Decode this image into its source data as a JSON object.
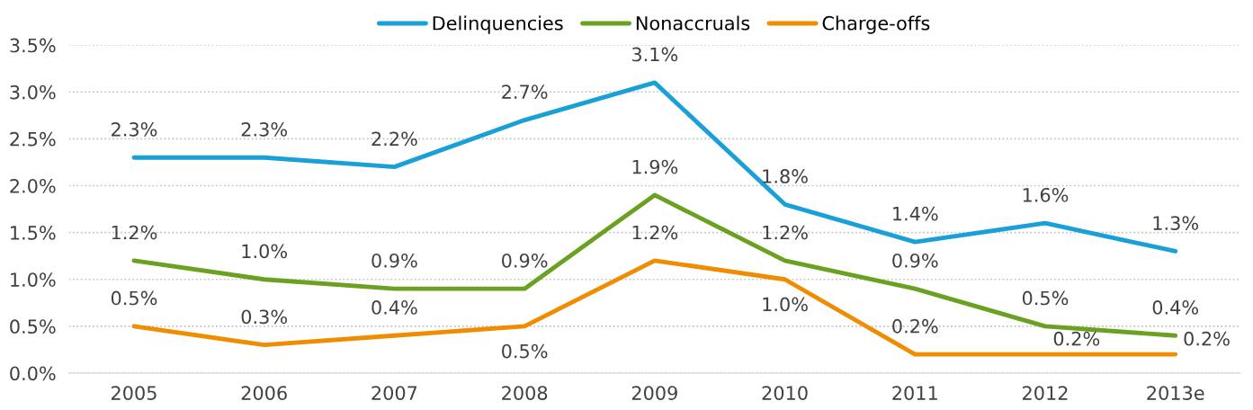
{
  "chart_data": {
    "type": "line",
    "categories": [
      "2005",
      "2006",
      "2007",
      "2008",
      "2009",
      "2010",
      "2011",
      "2012",
      "2013e"
    ],
    "series": [
      {
        "name": "Delinquencies",
        "color": "#1aa0d8",
        "values": [
          2.3,
          2.3,
          2.2,
          2.7,
          3.1,
          1.8,
          1.4,
          1.6,
          1.3
        ],
        "value_labels": [
          "2.3%",
          "2.3%",
          "2.2%",
          "2.7%",
          "3.1%",
          "1.8%",
          "1.4%",
          "1.6%",
          "1.3%"
        ]
      },
      {
        "name": "Nonaccruals",
        "color": "#6aa121",
        "values": [
          1.2,
          1.0,
          0.9,
          0.9,
          1.9,
          1.2,
          0.9,
          0.5,
          0.4
        ],
        "value_labels": [
          "1.2%",
          "1.0%",
          "0.9%",
          "0.9%",
          "1.9%",
          "1.2%",
          "0.9%",
          "0.5%",
          "0.4%"
        ]
      },
      {
        "name": "Charge-offs",
        "color": "#f08c00",
        "values": [
          0.5,
          0.3,
          0.4,
          0.5,
          1.2,
          1.0,
          0.2,
          0.2,
          0.2
        ],
        "value_labels": [
          "0.5%",
          "0.3%",
          "0.4%",
          "0.5%",
          "1.2%",
          "1.0%",
          "0.2%",
          "0.2%",
          "0.2%"
        ]
      }
    ],
    "ylim": [
      0,
      3.5
    ],
    "yticks": [
      {
        "value": 0,
        "label": "0.0%"
      },
      {
        "value": 0.5,
        "label": "0.5%"
      },
      {
        "value": 1.0,
        "label": "1.0%"
      },
      {
        "value": 1.5,
        "label": "1.5%"
      },
      {
        "value": 2.0,
        "label": "2.0%"
      },
      {
        "value": 2.5,
        "label": "2.5%"
      },
      {
        "value": 3.0,
        "label": "3.0%"
      },
      {
        "value": 3.5,
        "label": "3.5%"
      }
    ],
    "grid": "y",
    "legend": "top",
    "marker": "none",
    "line_style": "solid"
  }
}
